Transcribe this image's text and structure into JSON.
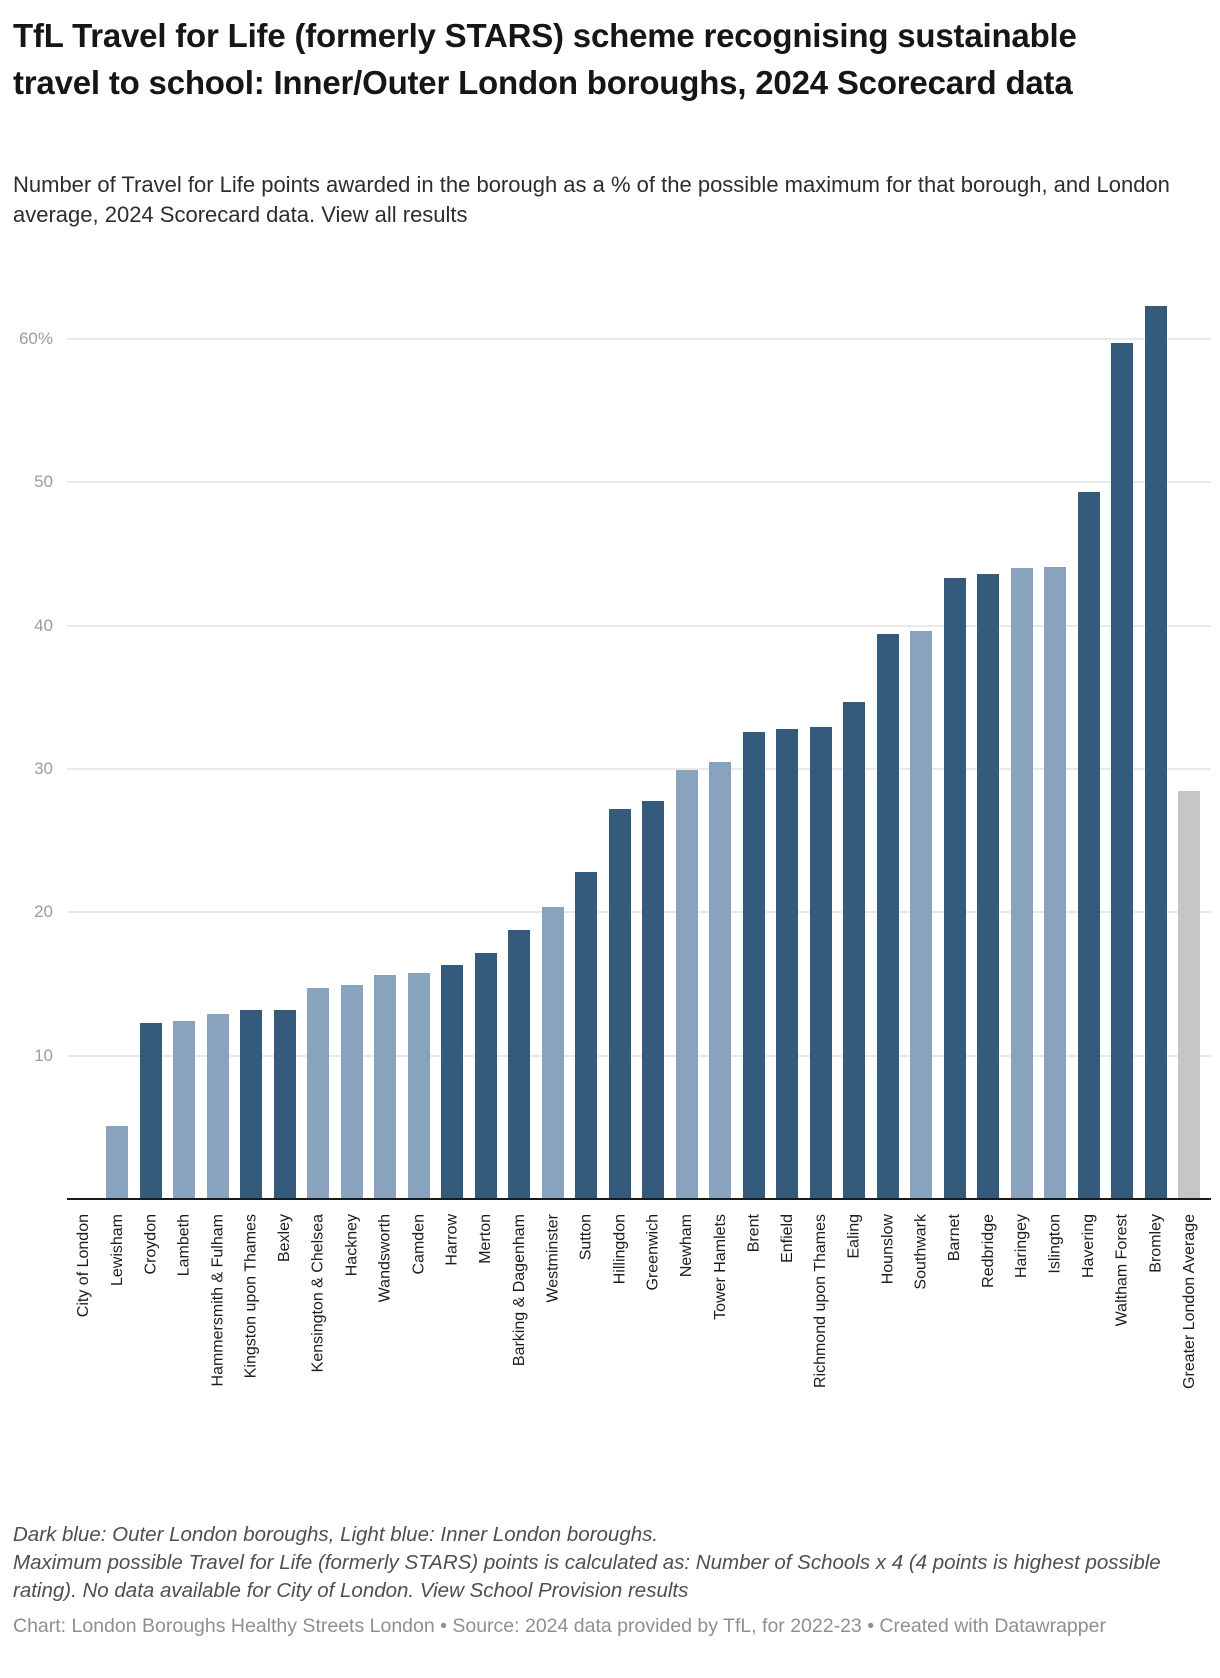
{
  "header": {
    "title": "TfL Travel for Life (formerly STARS) scheme recognising sustainable travel to school: Inner/Outer London boroughs, 2024 Scorecard data",
    "subtitle": "Number of Travel for Life points awarded in the borough as a % of the possible maximum for that borough, and London average, 2024 Scorecard data.",
    "subtitle_link": "View all results"
  },
  "chart_data": {
    "type": "bar",
    "title": "TfL Travel for Life (formerly STARS) scheme recognising sustainable travel to school: Inner/Outer London boroughs, 2024 Scorecard data",
    "ylabel": "",
    "xlabel": "",
    "ylim": [
      0,
      65
    ],
    "grid": "horizontal",
    "legend_note": "Dark blue: Outer London boroughs, Light blue: Inner London boroughs, Gray: Greater London Average",
    "yticks": [
      {
        "value": 10,
        "label": "10"
      },
      {
        "value": 20,
        "label": "20"
      },
      {
        "value": 30,
        "label": "30"
      },
      {
        "value": 40,
        "label": "40"
      },
      {
        "value": 50,
        "label": "50"
      },
      {
        "value": 60,
        "label": "60%"
      }
    ],
    "categories": [
      "City of London",
      "Lewisham",
      "Croydon",
      "Lambeth",
      "Hammersmith & Fulham",
      "Kingston upon Thames",
      "Bexley",
      "Kensington & Chelsea",
      "Hackney",
      "Wandsworth",
      "Camden",
      "Harrow",
      "Merton",
      "Barking & Dagenham",
      "Westminster",
      "Sutton",
      "Hillingdon",
      "Greenwich",
      "Newham",
      "Tower Hamlets",
      "Brent",
      "Enfield",
      "Richmond upon Thames",
      "Ealing",
      "Hounslow",
      "Southwark",
      "Barnet",
      "Redbridge",
      "Haringey",
      "Islington",
      "Havering",
      "Waltham Forest",
      "Bromley",
      "Greater London Average"
    ],
    "values": [
      null,
      5.1,
      12.3,
      12.4,
      12.9,
      13.2,
      13.2,
      14.7,
      14.9,
      15.6,
      15.8,
      16.3,
      17.2,
      18.8,
      20.4,
      22.8,
      27.2,
      27.8,
      29.9,
      30.5,
      32.6,
      32.8,
      32.9,
      34.7,
      39.4,
      39.6,
      43.3,
      43.6,
      44.0,
      44.1,
      49.3,
      59.7,
      62.3,
      28.5
    ],
    "groups": [
      "none",
      "inner",
      "outer",
      "inner",
      "inner",
      "outer",
      "outer",
      "inner",
      "inner",
      "inner",
      "inner",
      "outer",
      "outer",
      "outer",
      "inner",
      "outer",
      "outer",
      "outer",
      "inner",
      "inner",
      "outer",
      "outer",
      "outer",
      "outer",
      "outer",
      "inner",
      "outer",
      "outer",
      "inner",
      "inner",
      "outer",
      "outer",
      "outer",
      "average"
    ],
    "group_colors": {
      "outer": "#345A7C",
      "inner": "#89A3BE",
      "average": "#C6C6C6"
    }
  },
  "footer": {
    "note_line1": "Dark blue: Outer London boroughs, Light blue: Inner London boroughs.",
    "note_line2": "Maximum possible Travel for Life (formerly STARS) points is calculated as: Number of Schools x 4 (4 points is highest possible rating). No data available for City of London.",
    "note_link": "View School Provision results",
    "credit": "Chart: London Boroughs Healthy Streets London • Source: 2024 data provided by TfL, for 2022-23 • Created with Datawrapper"
  }
}
